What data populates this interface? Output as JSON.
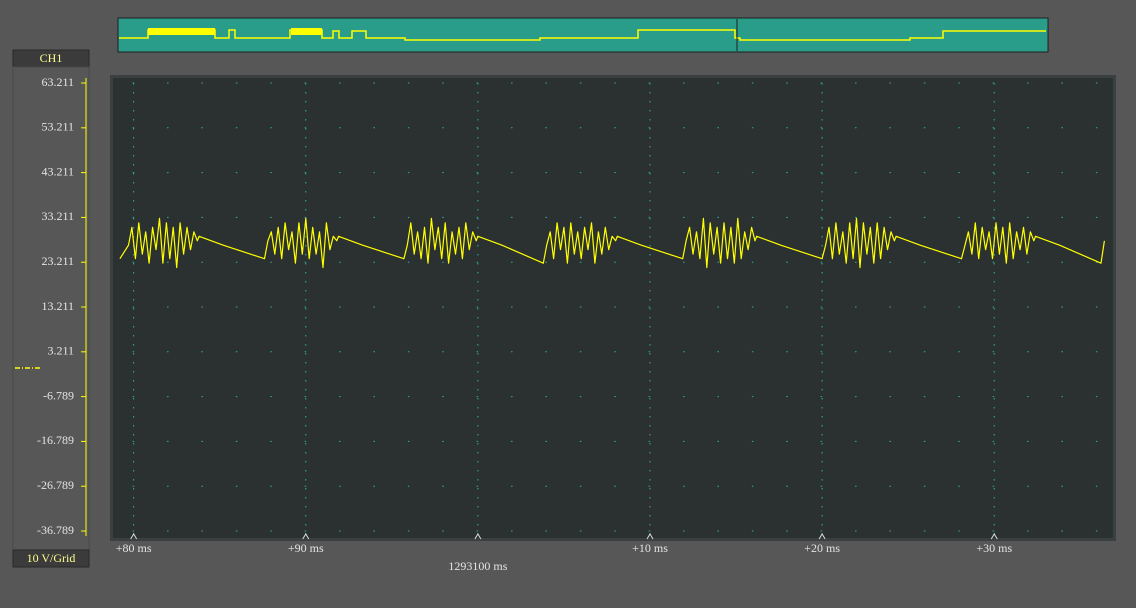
{
  "chart_data": {
    "type": "line",
    "channel_label": "CH1",
    "scale_label": "10 V/Grid",
    "color": "#ffff00",
    "grid": true,
    "xlim": [
      -21.2,
      36.9
    ],
    "ylim": [
      -38.35,
      64.33
    ],
    "xticks": [
      {
        "value": -20,
        "label": "+80 ms"
      },
      {
        "value": -10,
        "label": "+90 ms"
      },
      {
        "value": 0,
        "label": "1293100 ms"
      },
      {
        "value": 10,
        "label": "+10 ms"
      },
      {
        "value": 20,
        "label": "+20 ms"
      },
      {
        "value": 30,
        "label": "+30 ms"
      }
    ],
    "yticks": [
      63.211,
      53.211,
      43.211,
      33.211,
      23.211,
      13.211,
      3.211,
      -6.789,
      -16.789,
      -26.789,
      -36.789
    ],
    "x": [
      -20.8,
      -20.3,
      -20.1,
      -19.9,
      -19.7,
      -19.5,
      -19.3,
      -19.1,
      -18.9,
      -18.7,
      -18.5,
      -18.3,
      -18.1,
      -17.9,
      -17.7,
      -17.5,
      -17.3,
      -17.1,
      -16.9,
      -16.7,
      -16.5,
      -16.3,
      -16.2,
      -14.8,
      -12.4,
      -12.2,
      -12.0,
      -11.8,
      -11.6,
      -11.4,
      -11.2,
      -11.0,
      -10.8,
      -10.6,
      -10.4,
      -10.2,
      -10.0,
      -9.8,
      -9.6,
      -9.4,
      -9.2,
      -9.0,
      -8.8,
      -8.6,
      -8.4,
      -8.2,
      -8.1,
      -6.7,
      -4.3,
      -4.1,
      -3.9,
      -3.7,
      -3.5,
      -3.3,
      -3.1,
      -2.9,
      -2.7,
      -2.5,
      -2.3,
      -2.1,
      -1.9,
      -1.7,
      -1.5,
      -1.3,
      -1.1,
      -0.9,
      -0.7,
      -0.5,
      -0.3,
      -0.1,
      0.0,
      1.4,
      3.8,
      4.0,
      4.2,
      4.4,
      4.6,
      4.8,
      5.0,
      5.2,
      5.4,
      5.6,
      5.8,
      6.0,
      6.2,
      6.4,
      6.6,
      6.8,
      7.0,
      7.2,
      7.4,
      7.6,
      7.8,
      8.0,
      8.1,
      9.5,
      11.9,
      12.1,
      12.3,
      12.5,
      12.7,
      12.9,
      13.1,
      13.3,
      13.5,
      13.7,
      13.9,
      14.1,
      14.3,
      14.5,
      14.7,
      14.9,
      15.1,
      15.3,
      15.5,
      15.7,
      15.9,
      16.1,
      16.2,
      17.6,
      20.0,
      20.2,
      20.4,
      20.6,
      20.8,
      21.0,
      21.2,
      21.4,
      21.6,
      21.8,
      22.0,
      22.2,
      22.4,
      22.6,
      22.8,
      23.0,
      23.2,
      23.4,
      23.6,
      23.8,
      24.0,
      24.2,
      24.3,
      25.7,
      28.1,
      28.3,
      28.5,
      28.7,
      28.9,
      29.1,
      29.3,
      29.5,
      29.7,
      29.9,
      30.1,
      30.3,
      30.5,
      30.7,
      30.9,
      31.1,
      31.3,
      31.5,
      31.7,
      31.9,
      32.1,
      32.3,
      32.4,
      33.8,
      36.2,
      36.4
    ],
    "values": [
      24,
      27,
      31,
      24,
      32,
      25,
      30,
      23,
      31,
      26,
      33,
      23,
      32,
      24,
      31,
      22,
      32,
      25,
      31,
      26,
      30,
      28,
      29,
      27,
      24,
      28,
      30,
      25,
      31,
      24,
      32,
      26,
      30,
      23,
      32,
      25,
      33,
      24,
      31,
      25,
      30,
      22,
      32,
      26,
      29,
      28,
      29,
      27,
      24,
      27,
      32,
      25,
      30,
      24,
      31,
      23,
      33,
      26,
      31,
      24,
      32,
      23,
      30,
      25,
      31,
      24,
      32,
      26,
      30,
      28,
      29,
      27,
      23,
      27,
      30,
      24,
      32,
      26,
      31,
      23,
      32,
      25,
      30,
      24,
      31,
      26,
      32,
      23,
      30,
      25,
      31,
      26,
      29,
      28,
      29,
      27,
      24,
      28,
      31,
      25,
      30,
      24,
      33,
      22,
      32,
      25,
      31,
      23,
      32,
      24,
      31,
      23,
      33,
      24,
      30,
      26,
      31,
      28,
      29,
      27,
      24,
      27,
      31,
      24,
      32,
      25,
      30,
      23,
      32,
      24,
      33,
      22,
      32,
      25,
      31,
      23,
      32,
      24,
      31,
      26,
      30,
      28,
      29,
      27,
      24,
      27,
      30,
      25,
      32,
      24,
      31,
      26,
      30,
      24,
      32,
      25,
      31,
      23,
      32,
      24,
      30,
      26,
      31,
      25,
      30,
      28,
      29,
      27,
      23,
      28
    ]
  }
}
